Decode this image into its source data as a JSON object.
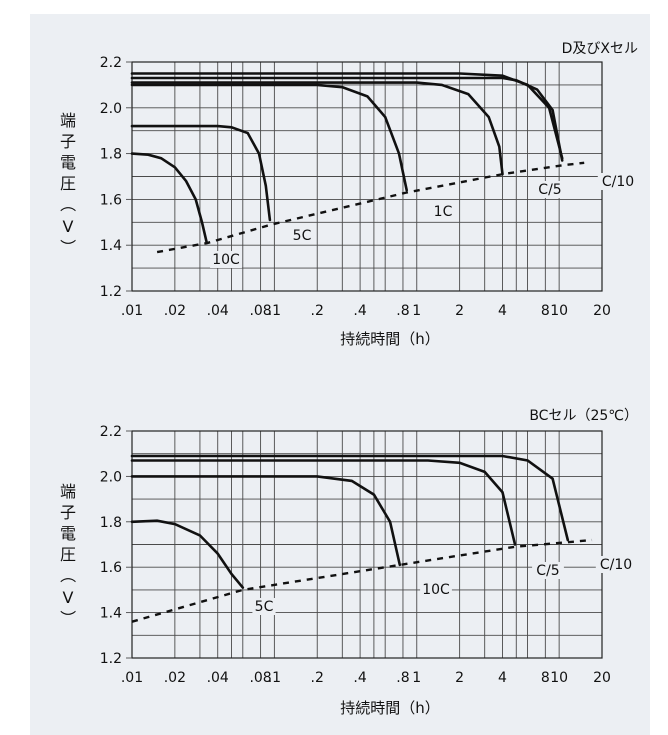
{
  "chart_data": [
    {
      "type": "line",
      "title": "D及びXセル",
      "xlabel": "持続時間（h）",
      "ylabel": "端子電圧（V）",
      "xscale": "log",
      "xlim": [
        0.01,
        20
      ],
      "ylim": [
        1.2,
        2.2
      ],
      "x_ticks": [
        0.01,
        0.02,
        0.04,
        0.08,
        0.1,
        0.2,
        0.4,
        0.8,
        1,
        2,
        4,
        8,
        10,
        20
      ],
      "x_tick_labels": [
        ".01",
        ".02",
        ".04",
        ".08",
        ".1",
        ".2",
        ".4",
        ".8",
        "1",
        "2",
        "4",
        "8",
        "10",
        "20"
      ],
      "y_ticks": [
        1.2,
        1.4,
        1.6,
        1.8,
        2.0,
        2.2
      ],
      "y_tick_labels": [
        "1.2",
        "1.4",
        "1.6",
        "1.8",
        "2.0",
        "2.2"
      ],
      "grid": true,
      "series": [
        {
          "name": "10C",
          "x": [
            0.01,
            0.013,
            0.016,
            0.02,
            0.024,
            0.028,
            0.031,
            0.0335
          ],
          "y": [
            1.8,
            1.795,
            1.78,
            1.74,
            1.68,
            1.6,
            1.5,
            1.41
          ]
        },
        {
          "name": "5C",
          "x": [
            0.01,
            0.04,
            0.05,
            0.065,
            0.078,
            0.087,
            0.093
          ],
          "y": [
            1.92,
            1.92,
            1.915,
            1.89,
            1.8,
            1.66,
            1.51
          ]
        },
        {
          "name": "1C",
          "x": [
            0.01,
            0.2,
            0.3,
            0.45,
            0.6,
            0.75,
            0.85
          ],
          "y": [
            2.1,
            2.1,
            2.09,
            2.05,
            1.96,
            1.8,
            1.64
          ]
        },
        {
          "name": "C/5",
          "x": [
            0.01,
            1.0,
            1.5,
            2.3,
            3.2,
            3.8,
            4.0
          ],
          "y": [
            2.11,
            2.11,
            2.1,
            2.06,
            1.96,
            1.83,
            1.71
          ]
        },
        {
          "name": "C/10",
          "x": [
            0.01,
            2.0,
            4.0,
            6.0,
            8.5,
            10.5
          ],
          "y": [
            2.15,
            2.15,
            2.14,
            2.1,
            2.0,
            1.78
          ]
        },
        {
          "name": "",
          "x": [
            0.01,
            4.0,
            5.0,
            7.0,
            9.0,
            10.5
          ],
          "y": [
            2.13,
            2.13,
            2.12,
            2.08,
            1.99,
            1.77
          ]
        },
        {
          "name": "",
          "x": [
            0.015,
            0.034,
            0.095,
            0.85,
            4.0,
            10.8,
            15.0
          ],
          "y": [
            1.37,
            1.41,
            1.49,
            1.63,
            1.71,
            1.75,
            1.76
          ],
          "style": "dashed"
        }
      ],
      "annotations": [
        "10C",
        "5C",
        "1C",
        "C/5",
        "C/10"
      ]
    },
    {
      "type": "line",
      "title": "BCセル（25℃）",
      "xlabel": "持続時間（h）",
      "ylabel": "端子電圧（V）",
      "xscale": "log",
      "xlim": [
        0.01,
        20
      ],
      "ylim": [
        1.2,
        2.2
      ],
      "x_ticks": [
        0.01,
        0.02,
        0.04,
        0.08,
        0.1,
        0.2,
        0.4,
        0.8,
        1,
        2,
        4,
        8,
        10,
        20
      ],
      "x_tick_labels": [
        ".01",
        ".02",
        ".04",
        ".08",
        ".1",
        ".2",
        ".4",
        ".8",
        "1",
        "2",
        "4",
        "8",
        "10",
        "20"
      ],
      "y_ticks": [
        1.2,
        1.4,
        1.6,
        1.8,
        2.0,
        2.2
      ],
      "y_tick_labels": [
        "1.2",
        "1.4",
        "1.6",
        "1.8",
        "2.0",
        "2.2"
      ],
      "grid": true,
      "series": [
        {
          "name": "5C",
          "x": [
            0.01,
            0.015,
            0.02,
            0.03,
            0.04,
            0.05,
            0.06
          ],
          "y": [
            1.8,
            1.805,
            1.79,
            1.74,
            1.66,
            1.57,
            1.51
          ]
        },
        {
          "name": "10C",
          "x": [
            0.01,
            0.2,
            0.35,
            0.5,
            0.65,
            0.76
          ],
          "y": [
            2.0,
            2.0,
            1.98,
            1.92,
            1.8,
            1.61
          ]
        },
        {
          "name": "C/5",
          "x": [
            0.01,
            1.2,
            2.0,
            3.0,
            4.0,
            4.9
          ],
          "y": [
            2.07,
            2.07,
            2.06,
            2.02,
            1.93,
            1.7
          ]
        },
        {
          "name": "C/10",
          "x": [
            0.01,
            2.0,
            4.0,
            6.0,
            9.0,
            11.5
          ],
          "y": [
            2.09,
            2.09,
            2.09,
            2.07,
            1.99,
            1.72
          ]
        },
        {
          "name": "",
          "x": [
            0.01,
            0.06,
            0.76,
            4.9,
            11.5,
            17.0
          ],
          "y": [
            1.36,
            1.5,
            1.61,
            1.69,
            1.71,
            1.72
          ],
          "style": "dashed"
        }
      ],
      "annotations": [
        "5C",
        "10C",
        "C/5",
        "C/10"
      ]
    }
  ]
}
